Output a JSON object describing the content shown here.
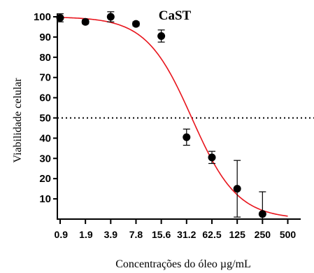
{
  "chart_data": {
    "type": "scatter",
    "title": "CaST",
    "xlabel": "Concentrações do óleo µg/mL",
    "ylabel": "Viabilidade celular",
    "x_scale": "log2",
    "x_tick_labels": [
      "0.9",
      "1.9",
      "3.9",
      "7.8",
      "15.6",
      "31.2",
      "62.5",
      "125",
      "250",
      "500"
    ],
    "x_tick_values": [
      0.975,
      1.95,
      3.9,
      7.8,
      15.6,
      31.2,
      62.5,
      125,
      250,
      500
    ],
    "y_ticks": [
      10,
      20,
      30,
      40,
      50,
      60,
      70,
      80,
      90,
      100
    ],
    "ylim": [
      0,
      100
    ],
    "reference_line": {
      "y": 50,
      "style": "dotted"
    },
    "points": [
      {
        "x": 0.975,
        "y": 99.5,
        "err": 2
      },
      {
        "x": 1.95,
        "y": 97.5,
        "err": 1
      },
      {
        "x": 3.9,
        "y": 100,
        "err": 2.5
      },
      {
        "x": 7.8,
        "y": 96.5,
        "err": 1
      },
      {
        "x": 15.6,
        "y": 90.5,
        "err": 3
      },
      {
        "x": 31.2,
        "y": 40.5,
        "err": 4
      },
      {
        "x": 62.5,
        "y": 30.5,
        "err": 3
      },
      {
        "x": 125,
        "y": 15,
        "err": 14
      },
      {
        "x": 250,
        "y": 2.5,
        "err": 11
      }
    ],
    "fit_curve": {
      "model": "sigmoid",
      "top": 100,
      "bottom": 0,
      "ec50": 36,
      "hill": 1.6,
      "color": "#e8141c"
    },
    "colors": {
      "points": "#000000",
      "curve": "#e8141c",
      "axes": "#000000"
    }
  }
}
